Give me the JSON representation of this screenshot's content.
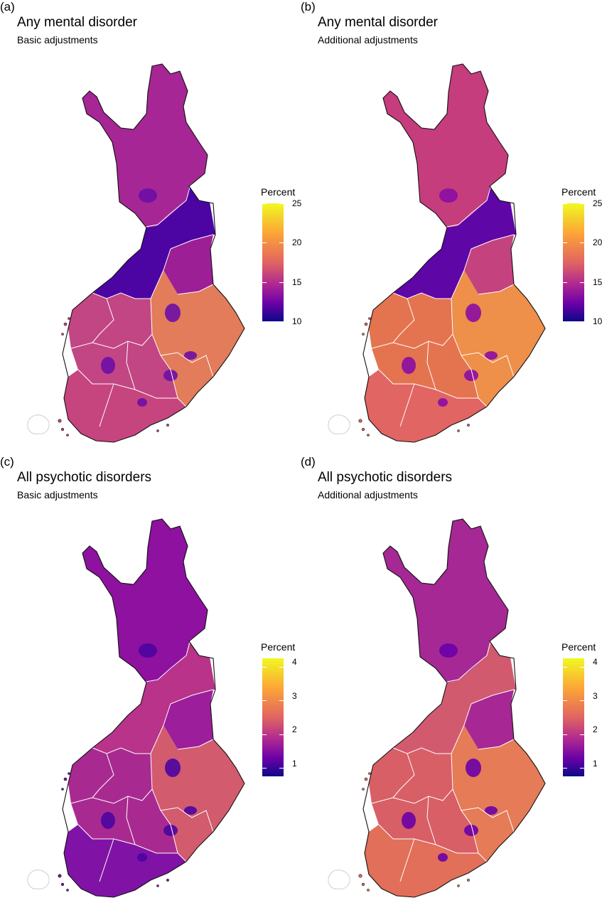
{
  "figure": {
    "panels": [
      {
        "tag": "(a)",
        "title": "Any mental disorder",
        "subtitle": "Basic adjustments",
        "legend": {
          "title": "Percent",
          "ticks": [
            "25",
            "20",
            "15",
            "10"
          ],
          "tick_values": [
            25,
            20,
            15,
            10
          ],
          "range": [
            10,
            25
          ]
        },
        "colors": {
          "north": "#a62695",
          "belt": "#4c05a3",
          "belt_east": "#9d1f96",
          "east": "#e27c5a",
          "center": "#c24683",
          "south": "#c7457f",
          "blob": "#6d0ea5"
        }
      },
      {
        "tag": "(b)",
        "title": "Any mental disorder",
        "subtitle": "Additional adjustments",
        "legend": {
          "title": "Percent",
          "ticks": [
            "25",
            "20",
            "15",
            "10"
          ],
          "tick_values": [
            25,
            20,
            15,
            10
          ],
          "range": [
            10,
            25
          ]
        },
        "colors": {
          "north": "#c53d7c",
          "belt": "#5e06a6",
          "belt_east": "#c4437f",
          "east": "#ee8f4a",
          "center": "#e4744f",
          "south": "#e06563",
          "blob": "#8a0da3"
        }
      },
      {
        "tag": "(c)",
        "title": "All psychotic disorders",
        "subtitle": "Basic adjustments",
        "legend": {
          "title": "Percent",
          "ticks": [
            "4",
            "3",
            "2",
            "1"
          ],
          "tick_values": [
            4,
            3,
            2,
            1
          ],
          "range": [
            0.75,
            4.25
          ]
        },
        "colors": {
          "north": "#8e11a0",
          "belt": "#b83389",
          "belt_east": "#9c1e9b",
          "east": "#d25b6e",
          "center": "#a82a91",
          "south": "#8013a5",
          "blob": "#4b04a0"
        }
      },
      {
        "tag": "(d)",
        "title": "All psychotic disorders",
        "subtitle": "Additional adjustments",
        "legend": {
          "title": "Percent",
          "ticks": [
            "4",
            "3",
            "2",
            "1"
          ],
          "tick_values": [
            4,
            3,
            2,
            1
          ],
          "range": [
            0.75,
            4.25
          ]
        },
        "colors": {
          "north": "#a52894",
          "belt": "#d25a6f",
          "belt_east": "#a72794",
          "east": "#e57b57",
          "center": "#d85f66",
          "south": "#e16f5a",
          "blob": "#6a00a8"
        }
      }
    ]
  }
}
